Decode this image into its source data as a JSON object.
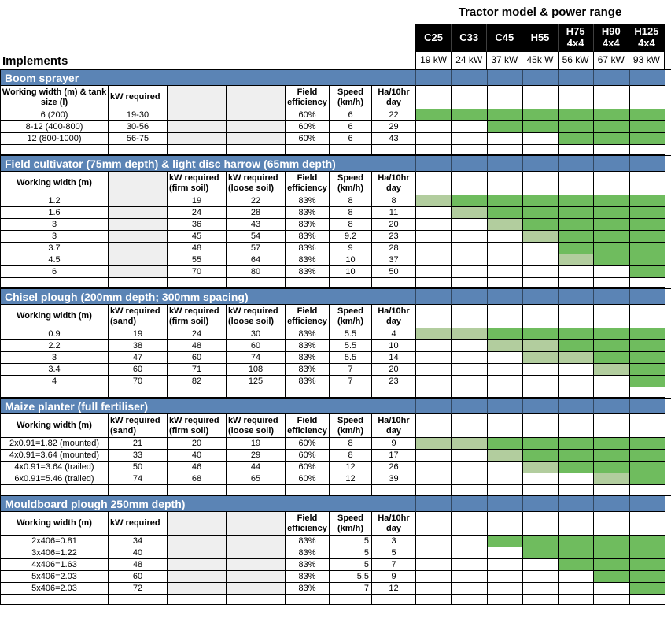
{
  "title": "Tractor model & power range",
  "implements_label": "Implements",
  "colors": {
    "section_bar": "#5b84b5",
    "model_header_bg": "#000000",
    "model_header_text": "#ffffff",
    "match_full": "#6fbc5e",
    "match_partial": "#b2cd9e",
    "blank_cell": "#efefef",
    "grid_line": "#000000"
  },
  "match_levels": [
    "none",
    "partial",
    "full"
  ],
  "tractors": [
    {
      "model": "C25",
      "model_lines": [
        "C25"
      ],
      "power": "19 kW"
    },
    {
      "model": "C33",
      "model_lines": [
        "C33"
      ],
      "power": "24 kW"
    },
    {
      "model": "C45",
      "model_lines": [
        "C45"
      ],
      "power": "37 kW"
    },
    {
      "model": "H55",
      "model_lines": [
        "H55"
      ],
      "power": "45k W"
    },
    {
      "model": "H75 4x4",
      "model_lines": [
        "H75",
        "4x4"
      ],
      "power": "56 kW"
    },
    {
      "model": "H90 4x4",
      "model_lines": [
        "H90",
        "4x4"
      ],
      "power": "67 kW"
    },
    {
      "model": "H125 4x4",
      "model_lines": [
        "H125",
        "4x4"
      ],
      "power": "93 kW"
    }
  ],
  "sections": [
    {
      "title": "Boom sprayer",
      "columns": [
        "Working width (m) & tank size (l)",
        "kW required",
        "",
        "",
        "Field efficiency",
        "Speed (km/h)",
        "Ha/10hr day"
      ],
      "gray_cols": [
        2,
        3
      ],
      "right_cols": [],
      "rows": [
        {
          "cells": [
            "6 (200)",
            "19-30",
            "",
            "",
            "60%",
            "6",
            "22"
          ],
          "match": [
            2,
            2,
            2,
            2,
            2,
            2,
            2
          ]
        },
        {
          "cells": [
            "8-12 (400-800)",
            "30-56",
            "",
            "",
            "60%",
            "6",
            "29"
          ],
          "match": [
            0,
            0,
            2,
            2,
            2,
            2,
            2
          ]
        },
        {
          "cells": [
            "12 (800-1000)",
            "56-75",
            "",
            "",
            "60%",
            "6",
            "43"
          ],
          "match": [
            0,
            0,
            0,
            0,
            2,
            2,
            2
          ]
        }
      ]
    },
    {
      "title": "Field cultivator (75mm depth) & light disc harrow (65mm depth)",
      "columns": [
        "Working width (m)",
        "",
        "kW required (firm soil)",
        "kW required (loose soil)",
        "Field efficiency",
        "Speed (km/h)",
        "Ha/10hr day"
      ],
      "gray_cols": [
        1
      ],
      "right_cols": [],
      "rows": [
        {
          "cells": [
            "1.2",
            "",
            "19",
            "22",
            "83%",
            "8",
            "8"
          ],
          "match": [
            1,
            2,
            2,
            2,
            2,
            2,
            2
          ]
        },
        {
          "cells": [
            "1.6",
            "",
            "24",
            "28",
            "83%",
            "8",
            "11"
          ],
          "match": [
            0,
            1,
            2,
            2,
            2,
            2,
            2
          ]
        },
        {
          "cells": [
            "3",
            "",
            "36",
            "43",
            "83%",
            "8",
            "20"
          ],
          "match": [
            0,
            0,
            1,
            2,
            2,
            2,
            2
          ]
        },
        {
          "cells": [
            "3",
            "",
            "45",
            "54",
            "83%",
            "9.2",
            "23"
          ],
          "match": [
            0,
            0,
            0,
            1,
            2,
            2,
            2
          ]
        },
        {
          "cells": [
            "3.7",
            "",
            "48",
            "57",
            "83%",
            "9",
            "28"
          ],
          "match": [
            0,
            0,
            0,
            0,
            2,
            2,
            2
          ]
        },
        {
          "cells": [
            "4.5",
            "",
            "55",
            "64",
            "83%",
            "10",
            "37"
          ],
          "match": [
            0,
            0,
            0,
            0,
            1,
            2,
            2
          ]
        },
        {
          "cells": [
            "6",
            "",
            "70",
            "80",
            "83%",
            "10",
            "50"
          ],
          "match": [
            0,
            0,
            0,
            0,
            0,
            0,
            2
          ]
        }
      ]
    },
    {
      "title": "Chisel plough (200mm depth; 300mm spacing)",
      "columns": [
        "Working width (m)",
        "kW required (sand)",
        "kW required (firm soil)",
        "kW required (loose soil)",
        "Field efficiency",
        "Speed (km/h)",
        "Ha/10hr day"
      ],
      "gray_cols": [],
      "right_cols": [],
      "rows": [
        {
          "cells": [
            "0.9",
            "19",
            "24",
            "30",
            "83%",
            "5.5",
            "4"
          ],
          "match": [
            1,
            1,
            2,
            2,
            2,
            2,
            2
          ]
        },
        {
          "cells": [
            "2.2",
            "38",
            "48",
            "60",
            "83%",
            "5.5",
            "10"
          ],
          "match": [
            0,
            0,
            1,
            1,
            2,
            2,
            2
          ]
        },
        {
          "cells": [
            "3",
            "47",
            "60",
            "74",
            "83%",
            "5.5",
            "14"
          ],
          "match": [
            0,
            0,
            0,
            1,
            1,
            2,
            2
          ]
        },
        {
          "cells": [
            "3.4",
            "60",
            "71",
            "108",
            "83%",
            "7",
            "20"
          ],
          "match": [
            0,
            0,
            0,
            0,
            0,
            1,
            2
          ]
        },
        {
          "cells": [
            "4",
            "70",
            "82",
            "125",
            "83%",
            "7",
            "23"
          ],
          "match": [
            0,
            0,
            0,
            0,
            0,
            0,
            2
          ]
        }
      ]
    },
    {
      "title": "Maize planter (full fertiliser)",
      "columns": [
        "Working width (m)",
        "kW required (sand)",
        "kW required (firm soil)",
        "kW required (loose soil)",
        "Field efficiency",
        "Speed (km/h)",
        "Ha/10hr day"
      ],
      "gray_cols": [],
      "right_cols": [],
      "rows": [
        {
          "cells": [
            "2x0.91=1.82 (mounted)",
            "21",
            "20",
            "19",
            "60%",
            "8",
            "9"
          ],
          "match": [
            1,
            1,
            2,
            2,
            2,
            2,
            2
          ]
        },
        {
          "cells": [
            "4x0.91=3.64 (mounted)",
            "33",
            "40",
            "29",
            "60%",
            "8",
            "17"
          ],
          "match": [
            0,
            0,
            1,
            2,
            2,
            2,
            2
          ]
        },
        {
          "cells": [
            "4x0.91=3.64 (trailed)",
            "50",
            "46",
            "44",
            "60%",
            "12",
            "26"
          ],
          "match": [
            0,
            0,
            0,
            1,
            2,
            2,
            2
          ]
        },
        {
          "cells": [
            "6x0.91=5.46 (trailed)",
            "74",
            "68",
            "65",
            "60%",
            "12",
            "39"
          ],
          "match": [
            0,
            0,
            0,
            0,
            0,
            1,
            2
          ]
        }
      ]
    },
    {
      "title": "Mouldboard plough 250mm depth)",
      "columns": [
        "Working width (m)",
        "kW required",
        "",
        "",
        "Field efficiency",
        "Speed (km/h)",
        "Ha/10hr day"
      ],
      "gray_cols": [
        2,
        3
      ],
      "right_cols": [
        5
      ],
      "rows": [
        {
          "cells": [
            "2x406=0.81",
            "34",
            "",
            "",
            "83%",
            "5",
            "3"
          ],
          "match": [
            0,
            0,
            2,
            2,
            2,
            2,
            2
          ]
        },
        {
          "cells": [
            "3x406=1.22",
            "40",
            "",
            "",
            "83%",
            "5",
            "5"
          ],
          "match": [
            0,
            0,
            0,
            2,
            2,
            2,
            2
          ]
        },
        {
          "cells": [
            "4x406=1.63",
            "48",
            "",
            "",
            "83%",
            "5",
            "7"
          ],
          "match": [
            0,
            0,
            0,
            0,
            2,
            2,
            2
          ]
        },
        {
          "cells": [
            "5x406=2.03",
            "60",
            "",
            "",
            "83%",
            "5.5",
            "9"
          ],
          "match": [
            0,
            0,
            0,
            0,
            0,
            2,
            2
          ]
        },
        {
          "cells": [
            "5x406=2.03",
            "72",
            "",
            "",
            "83%",
            "7",
            "12"
          ],
          "match": [
            0,
            0,
            0,
            0,
            0,
            0,
            2
          ]
        }
      ]
    }
  ]
}
